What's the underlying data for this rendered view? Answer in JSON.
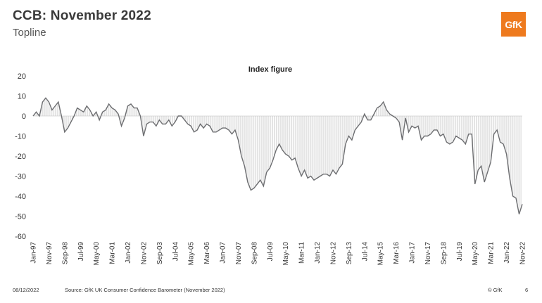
{
  "header": {
    "title": "CCB: November 2022",
    "subtitle": "Topline",
    "logo_text": "GfK",
    "brand_color": "#ee7a1e"
  },
  "footer": {
    "date": "08/12/2022",
    "source": "Source: GfK UK Consumer Confidence Barometer (November 2022)",
    "copyright": "© GfK",
    "page_number": "6"
  },
  "chart_data": {
    "type": "line",
    "title": "Index figure",
    "xlabel": "",
    "ylabel": "",
    "ylim": [
      -60,
      20
    ],
    "yticks": [
      20,
      10,
      0,
      -10,
      -20,
      -30,
      -40,
      -50,
      -60
    ],
    "grid": false,
    "line_color": "#6d6e71",
    "fill_color": "#c8c8c8",
    "x_tick_labels": [
      "Jan-97",
      "Nov-97",
      "Sep-98",
      "Jul-99",
      "May-00",
      "Mar-01",
      "Jan-02",
      "Nov-02",
      "Sep-03",
      "Jul-04",
      "May-05",
      "Mar-06",
      "Jan-07",
      "Nov-07",
      "Sep-08",
      "Jul-09",
      "May-10",
      "Mar-11",
      "Jan-12",
      "Nov-12",
      "Sep-13",
      "Jul-14",
      "May-15",
      "Mar-16",
      "Jan-17",
      "Nov-17",
      "Sep-18",
      "Jul-19",
      "May-20",
      "Mar-21",
      "Jan-22",
      "Nov-22"
    ],
    "series": [
      {
        "points": [
          [
            "Jan-97",
            0
          ],
          [
            "Mar-97",
            2
          ],
          [
            "May-97",
            0
          ],
          [
            "Jul-97",
            7
          ],
          [
            "Sep-97",
            9
          ],
          [
            "Nov-97",
            7
          ],
          [
            "Jan-98",
            3
          ],
          [
            "Mar-98",
            5
          ],
          [
            "May-98",
            7
          ],
          [
            "Jul-98",
            0
          ],
          [
            "Sep-98",
            -8
          ],
          [
            "Nov-98",
            -6
          ],
          [
            "Jan-99",
            -3
          ],
          [
            "Mar-99",
            0
          ],
          [
            "May-99",
            4
          ],
          [
            "Jul-99",
            3
          ],
          [
            "Sep-99",
            2
          ],
          [
            "Nov-99",
            5
          ],
          [
            "Jan-00",
            3
          ],
          [
            "Mar-00",
            0
          ],
          [
            "May-00",
            2
          ],
          [
            "Jul-00",
            -2
          ],
          [
            "Sep-00",
            2
          ],
          [
            "Nov-00",
            3
          ],
          [
            "Jan-01",
            6
          ],
          [
            "Mar-01",
            4
          ],
          [
            "May-01",
            3
          ],
          [
            "Jul-01",
            1
          ],
          [
            "Sep-01",
            -5
          ],
          [
            "Nov-01",
            -1
          ],
          [
            "Jan-02",
            5
          ],
          [
            "Mar-02",
            6
          ],
          [
            "May-02",
            4
          ],
          [
            "Jul-02",
            4
          ],
          [
            "Sep-02",
            0
          ],
          [
            "Nov-02",
            -10
          ],
          [
            "Jan-03",
            -4
          ],
          [
            "Mar-03",
            -3
          ],
          [
            "May-03",
            -3
          ],
          [
            "Jul-03",
            -5
          ],
          [
            "Sep-03",
            -2
          ],
          [
            "Nov-03",
            -4
          ],
          [
            "Jan-04",
            -4
          ],
          [
            "Mar-04",
            -2
          ],
          [
            "May-04",
            -5
          ],
          [
            "Jul-04",
            -3
          ],
          [
            "Sep-04",
            0
          ],
          [
            "Nov-04",
            0
          ],
          [
            "Jan-05",
            -2
          ],
          [
            "Mar-05",
            -4
          ],
          [
            "May-05",
            -5
          ],
          [
            "Jul-05",
            -8
          ],
          [
            "Sep-05",
            -7
          ],
          [
            "Nov-05",
            -4
          ],
          [
            "Jan-06",
            -6
          ],
          [
            "Mar-06",
            -4
          ],
          [
            "May-06",
            -5
          ],
          [
            "Jul-06",
            -8
          ],
          [
            "Sep-06",
            -8
          ],
          [
            "Nov-06",
            -7
          ],
          [
            "Jan-07",
            -6
          ],
          [
            "Mar-07",
            -6
          ],
          [
            "May-07",
            -7
          ],
          [
            "Jul-07",
            -9
          ],
          [
            "Sep-07",
            -7
          ],
          [
            "Nov-07",
            -12
          ],
          [
            "Jan-08",
            -20
          ],
          [
            "Mar-08",
            -25
          ],
          [
            "May-08",
            -33
          ],
          [
            "Jul-08",
            -37
          ],
          [
            "Sep-08",
            -36
          ],
          [
            "Nov-08",
            -34
          ],
          [
            "Jan-09",
            -32
          ],
          [
            "Mar-09",
            -35
          ],
          [
            "May-09",
            -28
          ],
          [
            "Jul-09",
            -26
          ],
          [
            "Sep-09",
            -22
          ],
          [
            "Nov-09",
            -17
          ],
          [
            "Jan-10",
            -14
          ],
          [
            "Mar-10",
            -17
          ],
          [
            "May-10",
            -19
          ],
          [
            "Jul-10",
            -20
          ],
          [
            "Sep-10",
            -22
          ],
          [
            "Nov-10",
            -21
          ],
          [
            "Jan-11",
            -26
          ],
          [
            "Mar-11",
            -30
          ],
          [
            "May-11",
            -27
          ],
          [
            "Jul-11",
            -31
          ],
          [
            "Sep-11",
            -30
          ],
          [
            "Nov-11",
            -32
          ],
          [
            "Jan-12",
            -31
          ],
          [
            "Mar-12",
            -30
          ],
          [
            "May-12",
            -29
          ],
          [
            "Jul-12",
            -29
          ],
          [
            "Sep-12",
            -30
          ],
          [
            "Nov-12",
            -27
          ],
          [
            "Jan-13",
            -29
          ],
          [
            "Mar-13",
            -26
          ],
          [
            "May-13",
            -24
          ],
          [
            "Jul-13",
            -14
          ],
          [
            "Sep-13",
            -10
          ],
          [
            "Nov-13",
            -12
          ],
          [
            "Jan-14",
            -7
          ],
          [
            "Mar-14",
            -5
          ],
          [
            "May-14",
            -3
          ],
          [
            "Jul-14",
            1
          ],
          [
            "Sep-14",
            -2
          ],
          [
            "Nov-14",
            -2
          ],
          [
            "Jan-15",
            1
          ],
          [
            "Mar-15",
            4
          ],
          [
            "May-15",
            5
          ],
          [
            "Jul-15",
            7
          ],
          [
            "Sep-15",
            3
          ],
          [
            "Nov-15",
            1
          ],
          [
            "Jan-16",
            0
          ],
          [
            "Mar-16",
            -1
          ],
          [
            "May-16",
            -3
          ],
          [
            "Jul-16",
            -12
          ],
          [
            "Sep-16",
            -1
          ],
          [
            "Nov-16",
            -8
          ],
          [
            "Jan-17",
            -5
          ],
          [
            "Mar-17",
            -6
          ],
          [
            "May-17",
            -5
          ],
          [
            "Jul-17",
            -12
          ],
          [
            "Sep-17",
            -10
          ],
          [
            "Nov-17",
            -10
          ],
          [
            "Jan-18",
            -9
          ],
          [
            "Mar-18",
            -7
          ],
          [
            "May-18",
            -7
          ],
          [
            "Jul-18",
            -10
          ],
          [
            "Sep-18",
            -9
          ],
          [
            "Nov-18",
            -13
          ],
          [
            "Jan-19",
            -14
          ],
          [
            "Mar-19",
            -13
          ],
          [
            "May-19",
            -10
          ],
          [
            "Jul-19",
            -11
          ],
          [
            "Sep-19",
            -12
          ],
          [
            "Nov-19",
            -14
          ],
          [
            "Jan-20",
            -9
          ],
          [
            "Mar-20",
            -9
          ],
          [
            "May-20",
            -34
          ],
          [
            "Jul-20",
            -27
          ],
          [
            "Sep-20",
            -25
          ],
          [
            "Nov-20",
            -33
          ],
          [
            "Jan-21",
            -28
          ],
          [
            "Mar-21",
            -23
          ],
          [
            "May-21",
            -9
          ],
          [
            "Jul-21",
            -7
          ],
          [
            "Sep-21",
            -13
          ],
          [
            "Nov-21",
            -14
          ],
          [
            "Jan-22",
            -19
          ],
          [
            "Mar-22",
            -31
          ],
          [
            "May-22",
            -40
          ],
          [
            "Jul-22",
            -41
          ],
          [
            "Sep-22",
            -49
          ],
          [
            "Nov-22",
            -44
          ]
        ]
      }
    ]
  }
}
